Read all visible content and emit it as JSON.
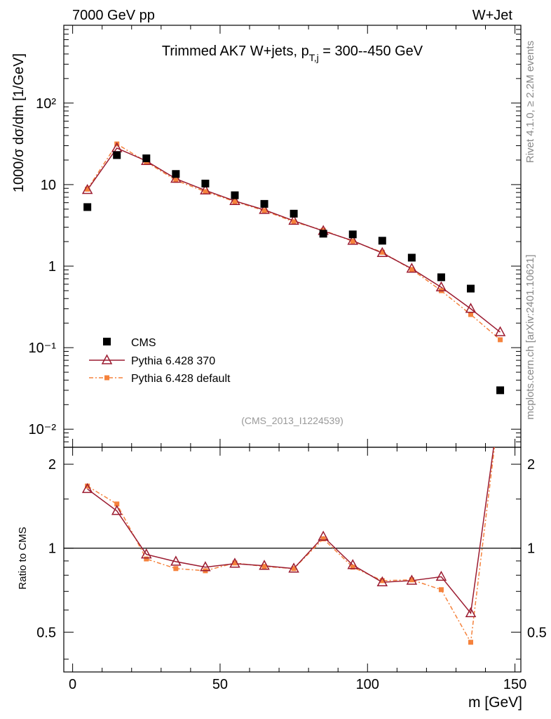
{
  "header": {
    "left": "7000 GeV pp",
    "right": "W+Jet"
  },
  "side_labels": {
    "rivet": "Rivet 4.1.0, ≥ 2.2M events",
    "mcplots": "mcplots.cern.ch [arXiv:2401.10621]"
  },
  "chart_data": {
    "type": "scatter",
    "title": "Trimmed AK7 W+jets, p_T,j = 300--450 GeV",
    "title_parts": {
      "pre": "Trimmed AK7 W+jets, p",
      "sub": "T,j",
      "post": " = 300--450 GeV"
    },
    "analysis_id": "(CMS_2013_I1224539)",
    "xlabel": "m [GeV]",
    "ylabel": "1000/σ  dσ/dm [1/GeV]",
    "ratio_ylabel": "Ratio to CMS",
    "xlim": [
      -3,
      152
    ],
    "ylim": [
      0.006,
      900
    ],
    "yscale": "log",
    "ratio_ylim": [
      0.36,
      2.3
    ],
    "ratio_yscale": "log",
    "x_ticks": [
      "0",
      "50",
      "100",
      "150"
    ],
    "y_ticks": [
      "10⁻²",
      "10⁻¹",
      "1",
      "10",
      "10²"
    ],
    "ratio_ticks": [
      "0.5",
      "1",
      "2"
    ],
    "x": [
      5,
      15,
      25,
      35,
      45,
      55,
      65,
      75,
      85,
      95,
      105,
      115,
      125,
      135,
      145
    ],
    "series": [
      {
        "name": "CMS",
        "role": "data",
        "color": "#000000",
        "values": [
          5.3,
          23.0,
          21.0,
          13.5,
          10.3,
          7.4,
          5.8,
          4.4,
          2.5,
          2.45,
          2.05,
          1.27,
          0.73,
          0.53,
          0.03
        ]
      },
      {
        "name": "Pythia 6.428 370",
        "role": "mc1",
        "color": "#9b1b30",
        "values": [
          8.6,
          28.0,
          19.5,
          11.8,
          8.5,
          6.3,
          4.9,
          3.6,
          2.7,
          2.05,
          1.45,
          0.93,
          0.55,
          0.3,
          0.155
        ],
        "ratio": [
          1.63,
          1.36,
          0.95,
          0.895,
          0.855,
          0.88,
          0.865,
          0.845,
          1.1,
          0.87,
          0.755,
          0.765,
          0.79,
          0.585,
          3.4
        ]
      },
      {
        "name": "Pythia 6.428 default",
        "role": "mc2",
        "color": "#f5823c",
        "values": [
          8.8,
          31.5,
          19.0,
          11.3,
          8.2,
          6.2,
          4.8,
          3.5,
          2.75,
          2.02,
          1.48,
          0.91,
          0.5,
          0.255,
          0.125
        ],
        "ratio": [
          1.67,
          1.44,
          0.915,
          0.845,
          0.83,
          0.885,
          0.86,
          0.845,
          1.08,
          0.855,
          0.765,
          0.77,
          0.71,
          0.46,
          3.4
        ]
      }
    ]
  }
}
